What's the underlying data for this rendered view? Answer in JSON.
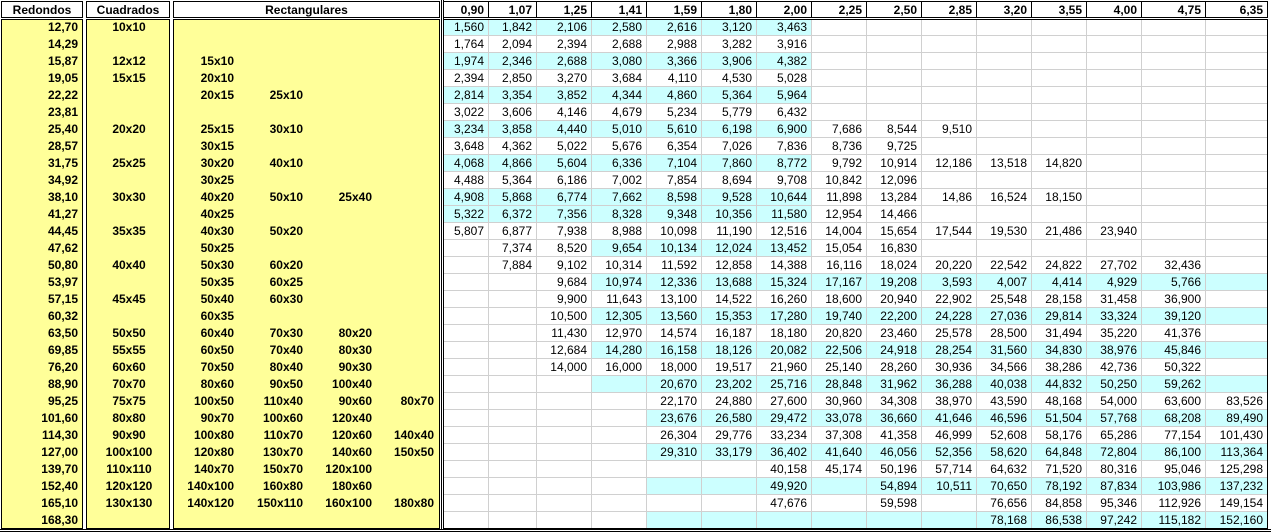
{
  "headers": {
    "redondos": "Redondos",
    "cuadrados": "Cuadrados",
    "rectangulares": "Rectangulares",
    "thickness": [
      "0,90",
      "1,07",
      "1,25",
      "1,41",
      "1,59",
      "1,80",
      "2,00",
      "2,25",
      "2,50",
      "2,85",
      "3,20",
      "3,55",
      "4,00",
      "4,75",
      "6,35"
    ]
  },
  "colors": {
    "yellow": "#ffff99",
    "highlight": "#ccffff",
    "grid": "#d0d0d0"
  },
  "rows": [
    {
      "redondo": "12,70",
      "cuadrado": "10x10",
      "rect": [
        "",
        "",
        "",
        ""
      ],
      "values": [
        "1,560",
        "1,842",
        "2,106",
        "2,580",
        "2,616",
        "3,120",
        "3,463",
        "",
        "",
        "",
        "",
        "",
        "",
        "",
        ""
      ],
      "highlighted_cols": [
        0,
        6
      ]
    },
    {
      "redondo": "14,29",
      "cuadrado": "",
      "rect": [
        "",
        "",
        "",
        ""
      ],
      "values": [
        "1,764",
        "2,094",
        "2,394",
        "2,688",
        "2,988",
        "3,282",
        "3,916",
        "",
        "",
        "",
        "",
        "",
        "",
        "",
        ""
      ],
      "highlighted_cols": null
    },
    {
      "redondo": "15,87",
      "cuadrado": "12x12",
      "rect": [
        "15x10",
        "",
        "",
        ""
      ],
      "values": [
        "1,974",
        "2,346",
        "2,688",
        "3,080",
        "3,366",
        "3,906",
        "4,382",
        "",
        "",
        "",
        "",
        "",
        "",
        "",
        ""
      ],
      "highlighted_cols": [
        0,
        6
      ]
    },
    {
      "redondo": "19,05",
      "cuadrado": "15x15",
      "rect": [
        "20x10",
        "",
        "",
        ""
      ],
      "values": [
        "2,394",
        "2,850",
        "3,270",
        "3,684",
        "4,110",
        "4,530",
        "5,028",
        "",
        "",
        "",
        "",
        "",
        "",
        "",
        ""
      ],
      "highlighted_cols": null
    },
    {
      "redondo": "22,22",
      "cuadrado": "",
      "rect": [
        "20x15",
        "25x10",
        "",
        ""
      ],
      "values": [
        "2,814",
        "3,354",
        "3,852",
        "4,344",
        "4,860",
        "5,364",
        "5,964",
        "",
        "",
        "",
        "",
        "",
        "",
        "",
        ""
      ],
      "highlighted_cols": [
        0,
        6
      ]
    },
    {
      "redondo": "23,81",
      "cuadrado": "",
      "rect": [
        "",
        "",
        "",
        ""
      ],
      "values": [
        "3,022",
        "3,606",
        "4,146",
        "4,679",
        "5,234",
        "5,779",
        "6,432",
        "",
        "",
        "",
        "",
        "",
        "",
        "",
        ""
      ],
      "highlighted_cols": null
    },
    {
      "redondo": "25,40",
      "cuadrado": "20x20",
      "rect": [
        "25x15",
        "30x10",
        "",
        ""
      ],
      "values": [
        "3,234",
        "3,858",
        "4,440",
        "5,010",
        "5,610",
        "6,198",
        "6,900",
        "7,686",
        "8,544",
        "9,510",
        "",
        "",
        "",
        "",
        ""
      ],
      "highlighted_cols": [
        0,
        6
      ]
    },
    {
      "redondo": "28,57",
      "cuadrado": "",
      "rect": [
        "30x15",
        "",
        "",
        ""
      ],
      "values": [
        "3,648",
        "4,362",
        "5,022",
        "5,676",
        "6,354",
        "7,026",
        "7,836",
        "8,736",
        "9,725",
        "",
        "",
        "",
        "",
        "",
        ""
      ],
      "highlighted_cols": null
    },
    {
      "redondo": "31,75",
      "cuadrado": "25x25",
      "rect": [
        "30x20",
        "40x10",
        "",
        ""
      ],
      "values": [
        "4,068",
        "4,866",
        "5,604",
        "6,336",
        "7,104",
        "7,860",
        "8,772",
        "9,792",
        "10,914",
        "12,186",
        "13,518",
        "14,820",
        "",
        "",
        ""
      ],
      "highlighted_cols": [
        0,
        6
      ]
    },
    {
      "redondo": "34,92",
      "cuadrado": "",
      "rect": [
        "30x25",
        "",
        "",
        ""
      ],
      "values": [
        "4,488",
        "5,364",
        "6,186",
        "7,002",
        "7,854",
        "8,694",
        "9,708",
        "10,842",
        "12,096",
        "",
        "",
        "",
        "",
        "",
        ""
      ],
      "highlighted_cols": null
    },
    {
      "redondo": "38,10",
      "cuadrado": "30x30",
      "rect": [
        "40x20",
        "50x10",
        "25x40",
        ""
      ],
      "values": [
        "4,908",
        "5,868",
        "6,774",
        "7,662",
        "8,598",
        "9,528",
        "10,644",
        "11,898",
        "13,284",
        "14,86",
        "16,524",
        "18,150",
        "",
        "",
        ""
      ],
      "highlighted_cols": [
        0,
        6
      ]
    },
    {
      "redondo": "41,27",
      "cuadrado": "",
      "rect": [
        "40x25",
        "",
        "",
        ""
      ],
      "values": [
        "5,322",
        "6,372",
        "7,356",
        "8,328",
        "9,348",
        "10,356",
        "11,580",
        "12,954",
        "14,466",
        "",
        "",
        "",
        "",
        "",
        ""
      ],
      "highlighted_cols": [
        0,
        6
      ]
    },
    {
      "redondo": "44,45",
      "cuadrado": "35x35",
      "rect": [
        "40x30",
        "50x20",
        "",
        ""
      ],
      "values": [
        "5,807",
        "6,877",
        "7,938",
        "8,988",
        "10,098",
        "11,190",
        "12,516",
        "14,004",
        "15,654",
        "17,544",
        "19,530",
        "21,486",
        "23,940",
        "",
        ""
      ],
      "highlighted_cols": null
    },
    {
      "redondo": "47,62",
      "cuadrado": "",
      "rect": [
        "50x25",
        "",
        "",
        ""
      ],
      "values": [
        "",
        "7,374",
        "8,520",
        "9,654",
        "10,134",
        "12,024",
        "13,452",
        "15,054",
        "16,830",
        "",
        "",
        "",
        "",
        "",
        ""
      ],
      "highlighted_cols": [
        3,
        6
      ]
    },
    {
      "redondo": "50,80",
      "cuadrado": "40x40",
      "rect": [
        "50x30",
        "60x20",
        "",
        ""
      ],
      "values": [
        "",
        "7,884",
        "9,102",
        "10,314",
        "11,592",
        "12,858",
        "14,388",
        "16,116",
        "18,024",
        "20,220",
        "22,542",
        "24,822",
        "27,702",
        "32,436",
        ""
      ],
      "highlighted_cols": null
    },
    {
      "redondo": "53,97",
      "cuadrado": "",
      "rect": [
        "50x35",
        "60x25",
        "",
        ""
      ],
      "values": [
        "",
        "",
        "9,684",
        "10,974",
        "12,336",
        "13,688",
        "15,324",
        "17,167",
        "19,208",
        "3,593",
        "4,007",
        "4,414",
        "4,929",
        "5,766",
        ""
      ],
      "highlighted_cols": [
        3,
        14
      ]
    },
    {
      "redondo": "57,15",
      "cuadrado": "45x45",
      "rect": [
        "50x40",
        "60x30",
        "",
        ""
      ],
      "values": [
        "",
        "",
        "9,900",
        "11,643",
        "13,100",
        "14,522",
        "16,260",
        "18,600",
        "20,940",
        "22,902",
        "25,548",
        "28,158",
        "31,458",
        "36,900",
        ""
      ],
      "highlighted_cols": null
    },
    {
      "redondo": "60,32",
      "cuadrado": "",
      "rect": [
        "60x35",
        "",
        "",
        ""
      ],
      "values": [
        "",
        "",
        "10,500",
        "12,305",
        "13,560",
        "15,353",
        "17,280",
        "19,740",
        "22,200",
        "24,228",
        "27,036",
        "29,814",
        "33,324",
        "39,120",
        ""
      ],
      "highlighted_cols": [
        3,
        14
      ]
    },
    {
      "redondo": "63,50",
      "cuadrado": "50x50",
      "rect": [
        "60x40",
        "70x30",
        "80x20",
        ""
      ],
      "values": [
        "",
        "",
        "11,430",
        "12,970",
        "14,574",
        "16,187",
        "18,180",
        "20,820",
        "23,460",
        "25,578",
        "28,500",
        "31,494",
        "35,220",
        "41,376",
        ""
      ],
      "highlighted_cols": null
    },
    {
      "redondo": "69,85",
      "cuadrado": "55x55",
      "rect": [
        "60x50",
        "70x40",
        "80x30",
        ""
      ],
      "values": [
        "",
        "",
        "12,684",
        "14,280",
        "16,158",
        "18,126",
        "20,082",
        "22,506",
        "24,918",
        "28,254",
        "31,560",
        "34,830",
        "38,976",
        "45,846",
        ""
      ],
      "highlighted_cols": [
        3,
        14
      ]
    },
    {
      "redondo": "76,20",
      "cuadrado": "60x60",
      "rect": [
        "70x50",
        "80x40",
        "90x30",
        ""
      ],
      "values": [
        "",
        "",
        "14,000",
        "16,000",
        "18,000",
        "19,517",
        "21,960",
        "25,140",
        "28,260",
        "30,936",
        "34,566",
        "38,286",
        "42,736",
        "50,322",
        ""
      ],
      "highlighted_cols": null
    },
    {
      "redondo": "88,90",
      "cuadrado": "70x70",
      "rect": [
        "80x60",
        "90x50",
        "100x40",
        ""
      ],
      "values": [
        "",
        "",
        "",
        "",
        "20,670",
        "23,202",
        "25,716",
        "28,848",
        "31,962",
        "36,288",
        "40,038",
        "44,832",
        "50,250",
        "59,262",
        ""
      ],
      "highlighted_cols": [
        3,
        14
      ]
    },
    {
      "redondo": "95,25",
      "cuadrado": "75x75",
      "rect": [
        "100x50",
        "110x40",
        "90x60",
        "80x70"
      ],
      "values": [
        "",
        "",
        "",
        "",
        "22,170",
        "24,880",
        "27,600",
        "30,960",
        "34,308",
        "38,970",
        "43,590",
        "48,168",
        "54,000",
        "63,600",
        "83,526"
      ],
      "highlighted_cols": null
    },
    {
      "redondo": "101,60",
      "cuadrado": "80x80",
      "rect": [
        "90x70",
        "100x60",
        "120x40",
        ""
      ],
      "values": [
        "",
        "",
        "",
        "",
        "23,676",
        "26,580",
        "29,472",
        "33,078",
        "36,660",
        "41,646",
        "46,596",
        "51,504",
        "57,768",
        "68,208",
        "89,490"
      ],
      "highlighted_cols": [
        4,
        14
      ]
    },
    {
      "redondo": "114,30",
      "cuadrado": "90x90",
      "rect": [
        "100x80",
        "110x70",
        "120x60",
        "140x40"
      ],
      "values": [
        "",
        "",
        "",
        "",
        "26,304",
        "29,776",
        "33,234",
        "37,308",
        "41,358",
        "46,999",
        "52,608",
        "58,176",
        "65,286",
        "77,154",
        "101,430"
      ],
      "highlighted_cols": null
    },
    {
      "redondo": "127,00",
      "cuadrado": "100x100",
      "rect": [
        "120x80",
        "130x70",
        "140x60",
        "150x50"
      ],
      "values": [
        "",
        "",
        "",
        "",
        "29,310",
        "33,179",
        "36,402",
        "41,640",
        "46,056",
        "52,356",
        "58,620",
        "64,848",
        "72,804",
        "86,100",
        "113,364"
      ],
      "highlighted_cols": [
        4,
        14
      ]
    },
    {
      "redondo": "139,70",
      "cuadrado": "110x110",
      "rect": [
        "140x70",
        "150x70",
        "120x100",
        ""
      ],
      "values": [
        "",
        "",
        "",
        "",
        "",
        "",
        "40,158",
        "45,174",
        "50,196",
        "57,714",
        "64,632",
        "71,520",
        "80,316",
        "95,046",
        "125,298"
      ],
      "highlighted_cols": null
    },
    {
      "redondo": "152,40",
      "cuadrado": "120x120",
      "rect": [
        "140x100",
        "160x80",
        "180x60",
        ""
      ],
      "values": [
        "",
        "",
        "",
        "",
        "",
        "",
        "49,920",
        "",
        "54,894",
        "10,511",
        "70,650",
        "78,192",
        "87,834",
        "103,986",
        "137,232"
      ],
      "highlighted_cols": [
        4,
        14
      ]
    },
    {
      "redondo": "165,10",
      "cuadrado": "130x130",
      "rect": [
        "140x120",
        "150x110",
        "160x100",
        "180x80"
      ],
      "values": [
        "",
        "",
        "",
        "",
        "",
        "",
        "47,676",
        "",
        "59,598",
        "",
        "76,656",
        "84,858",
        "95,346",
        "112,926",
        "149,154"
      ],
      "highlighted_cols": null
    },
    {
      "redondo": "168,30",
      "cuadrado": "",
      "rect": [
        "",
        "",
        "",
        ""
      ],
      "values": [
        "",
        "",
        "",
        "",
        "",
        "",
        "",
        "",
        "",
        "",
        "78,168",
        "86,538",
        "97,242",
        "115,182",
        "152,160"
      ],
      "highlighted_cols": [
        4,
        14
      ]
    }
  ]
}
